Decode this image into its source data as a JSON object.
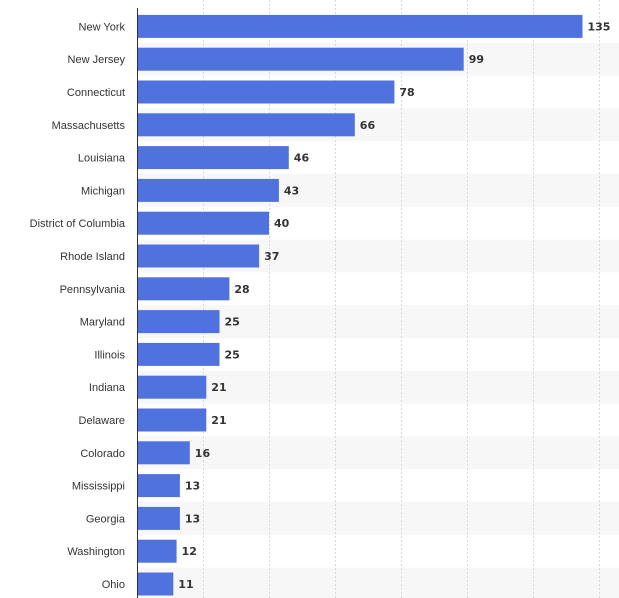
{
  "chart_data": {
    "type": "bar",
    "orientation": "horizontal",
    "categories": [
      "New York",
      "New Jersey",
      "Connecticut",
      "Massachusetts",
      "Louisiana",
      "Michigan",
      "District of Columbia",
      "Rhode Island",
      "Pennsylvania",
      "Maryland",
      "Illinois",
      "Indiana",
      "Delaware",
      "Colorado",
      "Mississippi",
      "Georgia",
      "Washington",
      "Ohio"
    ],
    "values": [
      135,
      99,
      78,
      66,
      46,
      43,
      40,
      37,
      28,
      25,
      25,
      21,
      21,
      16,
      13,
      13,
      12,
      11
    ],
    "title": "",
    "xlabel": "",
    "ylabel": "",
    "xlim": [
      0,
      140
    ],
    "grid": true,
    "bar_color": "#4f72df",
    "band_color": "#f7f7f7",
    "show_data_labels": true
  }
}
